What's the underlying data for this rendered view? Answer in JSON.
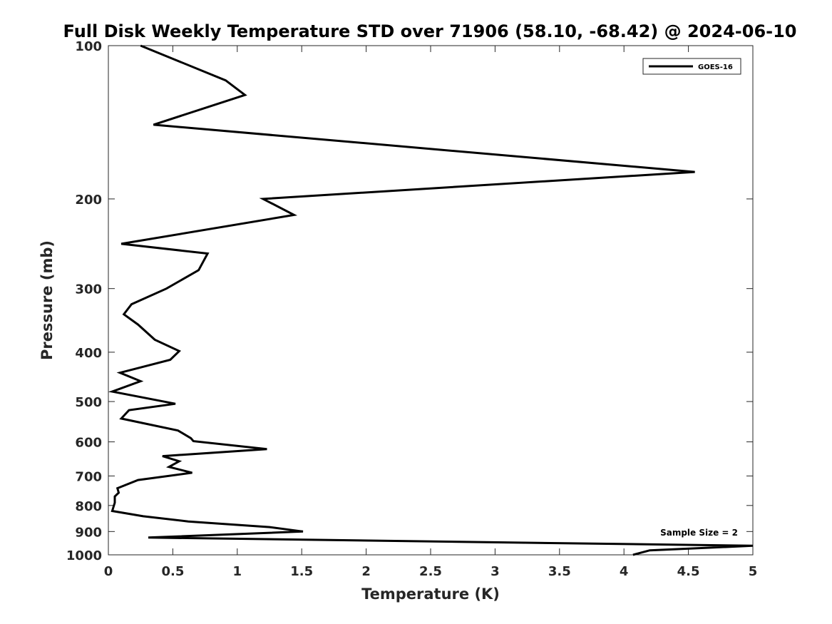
{
  "chart_data": {
    "type": "line",
    "title": "Full Disk Weekly Temperature STD over 71906 (58.10, -68.42) @ 2024-06-10",
    "xlabel": "Temperature (K)",
    "ylabel": "Pressure (mb)",
    "xlim": [
      0,
      5
    ],
    "ylim": [
      100,
      1000
    ],
    "y_scale": "log",
    "y_reversed": true,
    "x_ticks": [
      "0",
      "0.5",
      "1",
      "1.5",
      "2",
      "2.5",
      "3",
      "3.5",
      "4",
      "4.5",
      "5"
    ],
    "y_ticks": [
      "100",
      "200",
      "300",
      "400",
      "500",
      "600",
      "700",
      "800",
      "900",
      "1000"
    ],
    "grid": false,
    "legend_position": "top-right",
    "series": [
      {
        "name": "GOES-16",
        "color": "#000000",
        "temperature": [
          0.25,
          0.91,
          1.06,
          0.35,
          4.55,
          1.2,
          1.44,
          0.1,
          0.77,
          0.7,
          0.45,
          0.18,
          0.12,
          0.23,
          0.36,
          0.55,
          0.48,
          0.09,
          0.25,
          0.03,
          0.52,
          0.16,
          0.1,
          0.54,
          0.64,
          0.66,
          1.23,
          0.42,
          0.55,
          0.47,
          0.65,
          0.23,
          0.07,
          0.08,
          0.05,
          0.05,
          0.03,
          0.27,
          0.62,
          1.25,
          1.51,
          0.31,
          5.0,
          4.2,
          4.07
        ],
        "pressure": [
          100,
          117,
          125,
          143,
          177,
          200,
          215,
          245,
          256,
          276,
          300,
          322,
          337,
          353,
          378,
          398,
          414,
          439,
          456,
          478,
          505,
          520,
          540,
          570,
          590,
          598,
          620,
          640,
          655,
          672,
          690,
          713,
          740,
          755,
          768,
          790,
          820,
          840,
          860,
          882,
          900,
          925,
          960,
          980,
          1000
        ]
      }
    ],
    "annotation": "Sample Size = 2"
  }
}
